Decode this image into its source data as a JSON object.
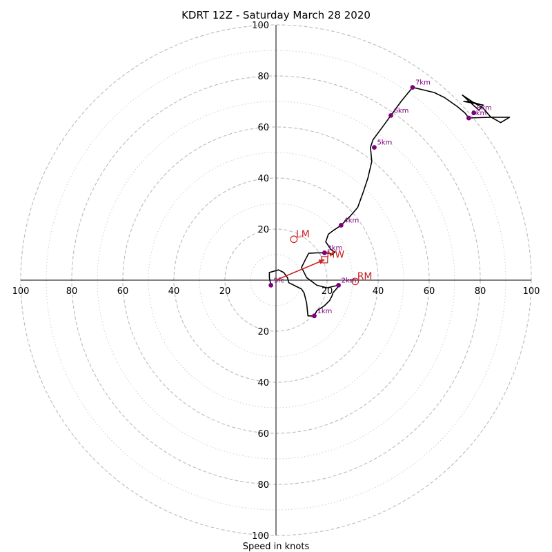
{
  "chart_data": {
    "type": "hodograph",
    "title": "KDRT 12Z - Saturday March 28 2020",
    "xlabel": "Speed in knots",
    "units": "knots",
    "axis_range": [
      -100,
      100
    ],
    "ring_major": [
      20,
      40,
      60,
      80,
      100
    ],
    "ring_minor": [
      10,
      30,
      50,
      70,
      90
    ],
    "x_tick_labels": [
      "100",
      "80",
      "60",
      "40",
      "20",
      "20",
      "40",
      "60",
      "80",
      "100"
    ],
    "x_tick_values": [
      -100,
      -80,
      -60,
      -40,
      -20,
      20,
      40,
      60,
      80,
      100
    ],
    "y_tick_labels": [
      "100",
      "80",
      "60",
      "40",
      "20",
      "20",
      "40",
      "60",
      "80",
      "100"
    ],
    "y_tick_values": [
      100,
      80,
      60,
      40,
      20,
      -20,
      -40,
      -60,
      -80,
      -100
    ],
    "grid": true,
    "colors": {
      "trace": "#000000",
      "height_marker": "#800080",
      "motion": "#cc2222",
      "grid": "#bbbbbb"
    },
    "trace": [
      [
        -2,
        -2
      ],
      [
        -2.6,
        1
      ],
      [
        -2.6,
        3
      ],
      [
        1,
        4
      ],
      [
        3,
        3
      ],
      [
        4.5,
        1
      ],
      [
        5,
        -1
      ],
      [
        7,
        -2
      ],
      [
        10,
        -3.5
      ],
      [
        11,
        -5
      ],
      [
        12,
        -9
      ],
      [
        12.5,
        -14
      ],
      [
        15,
        -14
      ],
      [
        16,
        -12
      ],
      [
        19,
        -10
      ],
      [
        21,
        -8
      ],
      [
        22,
        -6
      ],
      [
        22.3,
        -5
      ],
      [
        24,
        -3
      ],
      [
        24.5,
        -2
      ],
      [
        20,
        -3
      ],
      [
        16,
        -2
      ],
      [
        12,
        1
      ],
      [
        10,
        5
      ],
      [
        12,
        9
      ],
      [
        12.8,
        10.5
      ],
      [
        16,
        10.7
      ],
      [
        18.5,
        10.7
      ],
      [
        21,
        10.5
      ],
      [
        22,
        10
      ],
      [
        23,
        11
      ],
      [
        21.5,
        12
      ],
      [
        19.5,
        15
      ],
      [
        20.5,
        18
      ],
      [
        22.5,
        19.5
      ],
      [
        25.5,
        21.5
      ],
      [
        29,
        25
      ],
      [
        32,
        28.5
      ],
      [
        34,
        34
      ],
      [
        36,
        40
      ],
      [
        37.5,
        46.5
      ],
      [
        37,
        52
      ],
      [
        38,
        55
      ],
      [
        41,
        59
      ],
      [
        45,
        64.5
      ],
      [
        49,
        70
      ],
      [
        53.5,
        75.5
      ],
      [
        62,
        73.5
      ],
      [
        66,
        71.5
      ],
      [
        71,
        68
      ],
      [
        74,
        65.5
      ],
      [
        75.5,
        63.5
      ],
      [
        84,
        63.8
      ],
      [
        91.5,
        63.8
      ],
      [
        88,
        61.7
      ],
      [
        84,
        64
      ],
      [
        81,
        67.5
      ],
      [
        77.5,
        69.5
      ],
      [
        73,
        72.5
      ],
      [
        79.5,
        66.5
      ],
      [
        81,
        68.5
      ],
      [
        76,
        70
      ],
      [
        73.5,
        70
      ],
      [
        81.5,
        68.5
      ]
    ],
    "height_markers": [
      {
        "label": "Sfc",
        "u": -2,
        "v": -2
      },
      {
        "label": "1km",
        "u": 15,
        "v": -14
      },
      {
        "label": "2km",
        "u": 24.5,
        "v": -2
      },
      {
        "label": "3km",
        "u": 19,
        "v": 10.7
      },
      {
        "label": "4km",
        "u": 25.5,
        "v": 21.5
      },
      {
        "label": "5km",
        "u": 38.5,
        "v": 52
      },
      {
        "label": "6km",
        "u": 45,
        "v": 64.5
      },
      {
        "label": "7km",
        "u": 53.5,
        "v": 75.5
      },
      {
        "label": "8km",
        "u": 77.5,
        "v": 65.5
      },
      {
        "label": "9km",
        "u": 75.5,
        "v": 63.5
      }
    ],
    "storm_motion": [
      {
        "label": "LM",
        "u": 7,
        "v": 16,
        "marker": "circle"
      },
      {
        "label": "MW",
        "u": 19,
        "v": 8,
        "marker": "square"
      },
      {
        "label": "RM",
        "u": 31,
        "v": -0.5,
        "marker": "circle"
      }
    ],
    "shear_vector": {
      "from": [
        0,
        0
      ],
      "to": [
        19,
        8
      ]
    }
  }
}
